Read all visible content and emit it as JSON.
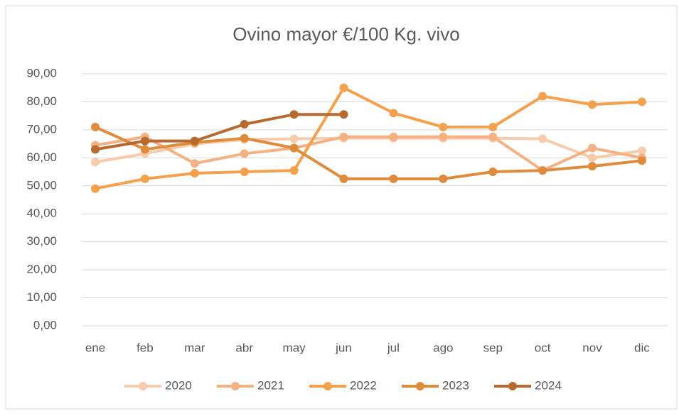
{
  "chart_data": {
    "type": "line",
    "title": "Ovino mayor €/100 Kg. vivo",
    "categories": [
      "ene",
      "feb",
      "mar",
      "abr",
      "may",
      "jun",
      "jul",
      "ago",
      "sep",
      "oct",
      "nov",
      "dic"
    ],
    "series": [
      {
        "name": "2020",
        "color": "#f8cbad",
        "values": [
          58.5,
          61.5,
          65,
          66.5,
          66.8,
          67,
          67,
          67,
          67,
          66.8,
          60,
          62.5
        ]
      },
      {
        "name": "2021",
        "color": "#f4b183",
        "values": [
          64.5,
          67.5,
          58,
          61.5,
          63.5,
          67.5,
          67.5,
          67.5,
          67.5,
          55.5,
          63.5,
          60
        ]
      },
      {
        "name": "2022",
        "color": "#f4a04c",
        "values": [
          49,
          52.5,
          54.5,
          55,
          55.5,
          85,
          76,
          71,
          71,
          82,
          79,
          80
        ]
      },
      {
        "name": "2023",
        "color": "#e08a3c",
        "values": [
          71,
          63,
          65.5,
          67,
          63.5,
          52.5,
          52.5,
          52.5,
          55,
          55.5,
          57,
          59
        ]
      },
      {
        "name": "2024",
        "color": "#b8692e",
        "values": [
          63,
          66,
          66,
          72,
          75.5,
          75.5,
          null,
          null,
          null,
          null,
          null,
          null
        ]
      }
    ],
    "ylim": [
      0,
      90
    ],
    "yticks": [
      {
        "value": 0,
        "label": "0,00"
      },
      {
        "value": 10,
        "label": "10,00"
      },
      {
        "value": 20,
        "label": "20,00"
      },
      {
        "value": 30,
        "label": "30,00"
      },
      {
        "value": 40,
        "label": "40,00"
      },
      {
        "value": 50,
        "label": "50,00"
      },
      {
        "value": 60,
        "label": "60,00"
      },
      {
        "value": 70,
        "label": "70,00"
      },
      {
        "value": 80,
        "label": "80,00"
      },
      {
        "value": 90,
        "label": "90,00"
      }
    ],
    "grid": true,
    "legend": "bottom"
  }
}
